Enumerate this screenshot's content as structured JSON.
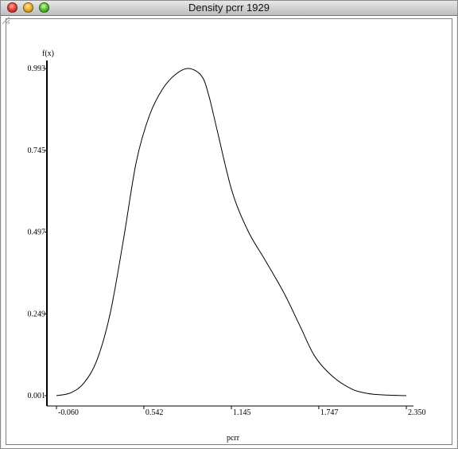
{
  "window": {
    "title": "Density pcrr 1929"
  },
  "colors": {
    "curve": "#000000",
    "axes": "#000000"
  },
  "chart_data": {
    "type": "line",
    "title": "",
    "xlabel": "pcrr",
    "ylabel": "f(x)",
    "xlim": [
      -0.06,
      2.35
    ],
    "ylim": [
      0.001,
      0.993
    ],
    "x_ticks": [
      "-0.060",
      "0.542",
      "1.145",
      "1.747",
      "2.350"
    ],
    "y_ticks": [
      "0.001",
      "0.249",
      "0.497",
      "0.745",
      "0.993"
    ],
    "grid": false,
    "series": [
      {
        "x": [
          -0.06,
          0.04,
          0.13,
          0.22,
          0.31,
          0.4,
          0.49,
          0.58,
          0.67,
          0.76,
          0.85,
          0.94,
          0.99,
          1.05,
          1.15,
          1.26,
          1.38,
          1.51,
          1.62,
          1.72,
          1.84,
          1.97,
          2.08,
          2.2,
          2.35
        ],
        "y": [
          0.001,
          0.01,
          0.04,
          0.11,
          0.25,
          0.47,
          0.71,
          0.85,
          0.93,
          0.975,
          0.993,
          0.97,
          0.91,
          0.8,
          0.62,
          0.5,
          0.41,
          0.31,
          0.21,
          0.12,
          0.06,
          0.022,
          0.008,
          0.003,
          0.001
        ]
      }
    ]
  }
}
